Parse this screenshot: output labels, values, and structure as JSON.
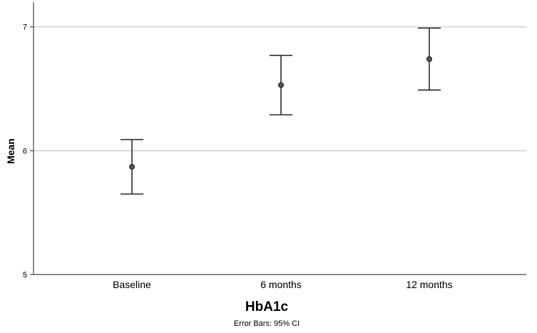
{
  "chart_data": {
    "type": "scatter",
    "categories": [
      "Baseline",
      "6 months",
      "12 months"
    ],
    "series": [
      {
        "values": [
          5.87,
          6.53,
          6.74
        ],
        "ci_lower": [
          5.65,
          6.29,
          6.49
        ],
        "ci_upper": [
          6.09,
          6.77,
          6.99
        ]
      }
    ],
    "title": "",
    "xlabel": "HbA1c",
    "ylabel": "Mean",
    "note": "Error Bars: 95% CI",
    "ylim": [
      5,
      7.2
    ],
    "yticks": [
      "5",
      "6",
      "7"
    ],
    "grid": true
  }
}
